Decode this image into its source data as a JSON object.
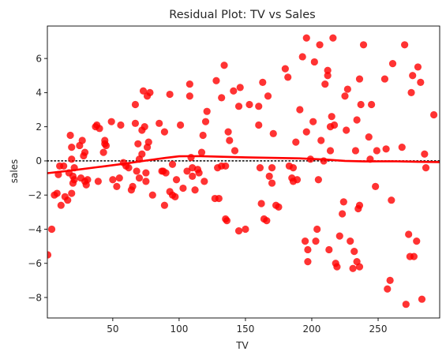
{
  "chart_data": {
    "type": "scatter",
    "title": "Residual Plot: TV vs Sales",
    "xlabel": "TV",
    "ylabel": "sales",
    "xlim": [
      0.7,
      296.4
    ],
    "ylim": [
      -9.2,
      7.9
    ],
    "xticks": [
      50,
      100,
      150,
      200,
      250
    ],
    "yticks": [
      -8,
      -6,
      -4,
      -2,
      0,
      2,
      4,
      6
    ],
    "grid": false,
    "point_color": "#ff0000",
    "line_color": "#ff0000",
    "reference_line": {
      "y": 0,
      "style": "dotted",
      "color": "#000000"
    },
    "points": [
      {
        "x": 1,
        "y": -5.5
      },
      {
        "x": 4,
        "y": -4.0
      },
      {
        "x": 6,
        "y": -2.0
      },
      {
        "x": 8,
        "y": -1.9
      },
      {
        "x": 9,
        "y": -0.8
      },
      {
        "x": 10,
        "y": -0.3
      },
      {
        "x": 11,
        "y": -2.6
      },
      {
        "x": 13,
        "y": -0.3
      },
      {
        "x": 14,
        "y": -2.1
      },
      {
        "x": 16,
        "y": -2.3
      },
      {
        "x": 17,
        "y": -0.7
      },
      {
        "x": 18,
        "y": 1.5
      },
      {
        "x": 19,
        "y": 0.8
      },
      {
        "x": 19,
        "y": 0.1
      },
      {
        "x": 19,
        "y": -1.9
      },
      {
        "x": 20,
        "y": -0.9
      },
      {
        "x": 20,
        "y": -1.3
      },
      {
        "x": 21,
        "y": -1.1
      },
      {
        "x": 21,
        "y": -0.4
      },
      {
        "x": 25,
        "y": 0.9
      },
      {
        "x": 26,
        "y": -1.0
      },
      {
        "x": 27,
        "y": 1.2
      },
      {
        "x": 28,
        "y": 0.3
      },
      {
        "x": 29,
        "y": 0.5
      },
      {
        "x": 29,
        "y": -1.2
      },
      {
        "x": 30,
        "y": -1.4
      },
      {
        "x": 31,
        "y": -1.1
      },
      {
        "x": 37,
        "y": 2.0
      },
      {
        "x": 38,
        "y": 2.1
      },
      {
        "x": 39,
        "y": -1.2
      },
      {
        "x": 40,
        "y": 1.9
      },
      {
        "x": 43,
        "y": 0.5
      },
      {
        "x": 44,
        "y": 1.2
      },
      {
        "x": 44,
        "y": 1.0
      },
      {
        "x": 45,
        "y": 0.9
      },
      {
        "x": 49,
        "y": 2.3
      },
      {
        "x": 50,
        "y": -1.1
      },
      {
        "x": 53,
        "y": -1.5
      },
      {
        "x": 55,
        "y": -1.0
      },
      {
        "x": 56,
        "y": 2.1
      },
      {
        "x": 58,
        "y": -0.1
      },
      {
        "x": 60,
        "y": -0.3
      },
      {
        "x": 62,
        "y": -0.4
      },
      {
        "x": 64,
        "y": -1.7
      },
      {
        "x": 65,
        "y": -1.5
      },
      {
        "x": 67,
        "y": 2.2
      },
      {
        "x": 67,
        "y": 3.3
      },
      {
        "x": 68,
        "y": -0.6
      },
      {
        "x": 69,
        "y": 1.0
      },
      {
        "x": 70,
        "y": -1.0
      },
      {
        "x": 70,
        "y": 0.1
      },
      {
        "x": 72,
        "y": 1.8
      },
      {
        "x": 72,
        "y": 0.4
      },
      {
        "x": 73,
        "y": 4.1
      },
      {
        "x": 74,
        "y": 2.0
      },
      {
        "x": 75,
        "y": -0.7
      },
      {
        "x": 75,
        "y": -1.2
      },
      {
        "x": 76,
        "y": 0.8
      },
      {
        "x": 76,
        "y": 3.8
      },
      {
        "x": 77,
        "y": 1.1
      },
      {
        "x": 78,
        "y": 4.0
      },
      {
        "x": 80,
        "y": -2.0
      },
      {
        "x": 85,
        "y": 2.2
      },
      {
        "x": 87,
        "y": -0.6
      },
      {
        "x": 88,
        "y": -0.6
      },
      {
        "x": 89,
        "y": 1.7
      },
      {
        "x": 89,
        "y": -2.6
      },
      {
        "x": 90,
        "y": -0.7
      },
      {
        "x": 93,
        "y": 3.9
      },
      {
        "x": 93,
        "y": -1.8
      },
      {
        "x": 95,
        "y": -0.2
      },
      {
        "x": 95,
        "y": -2.0
      },
      {
        "x": 97,
        "y": -2.1
      },
      {
        "x": 98,
        "y": -1.1
      },
      {
        "x": 101,
        "y": 2.1
      },
      {
        "x": 103,
        "y": -1.6
      },
      {
        "x": 106,
        "y": -0.6
      },
      {
        "x": 108,
        "y": 3.8
      },
      {
        "x": 108,
        "y": 4.5
      },
      {
        "x": 109,
        "y": 0.2
      },
      {
        "x": 110,
        "y": -0.9
      },
      {
        "x": 110,
        "y": -0.4
      },
      {
        "x": 112,
        "y": -1.7
      },
      {
        "x": 114,
        "y": -0.5
      },
      {
        "x": 115,
        "y": -0.7
      },
      {
        "x": 117,
        "y": 0.5
      },
      {
        "x": 118,
        "y": 1.5
      },
      {
        "x": 119,
        "y": -1.2
      },
      {
        "x": 120,
        "y": 2.3
      },
      {
        "x": 121,
        "y": 2.9
      },
      {
        "x": 127,
        "y": -2.2
      },
      {
        "x": 128,
        "y": 4.7
      },
      {
        "x": 129,
        "y": -0.4
      },
      {
        "x": 130,
        "y": -2.2
      },
      {
        "x": 132,
        "y": 3.7
      },
      {
        "x": 132,
        "y": -0.3
      },
      {
        "x": 134,
        "y": 5.6
      },
      {
        "x": 135,
        "y": -0.3
      },
      {
        "x": 135,
        "y": -3.4
      },
      {
        "x": 136,
        "y": -3.5
      },
      {
        "x": 137,
        "y": 1.7
      },
      {
        "x": 138,
        "y": 1.2
      },
      {
        "x": 141,
        "y": 4.1
      },
      {
        "x": 142,
        "y": 0.6
      },
      {
        "x": 145,
        "y": 3.2
      },
      {
        "x": 145,
        "y": -4.1
      },
      {
        "x": 146,
        "y": 4.3
      },
      {
        "x": 150,
        "y": -4.0
      },
      {
        "x": 153,
        "y": 3.3
      },
      {
        "x": 160,
        "y": 2.1
      },
      {
        "x": 160,
        "y": 3.2
      },
      {
        "x": 161,
        "y": -0.4
      },
      {
        "x": 162,
        "y": -2.5
      },
      {
        "x": 163,
        "y": 4.6
      },
      {
        "x": 164,
        "y": -3.4
      },
      {
        "x": 166,
        "y": -3.5
      },
      {
        "x": 167,
        "y": 3.8
      },
      {
        "x": 168,
        "y": -0.9
      },
      {
        "x": 170,
        "y": -0.4
      },
      {
        "x": 170,
        "y": -1.3
      },
      {
        "x": 171,
        "y": 1.6
      },
      {
        "x": 173,
        "y": -2.6
      },
      {
        "x": 175,
        "y": -2.7
      },
      {
        "x": 180,
        "y": 5.4
      },
      {
        "x": 182,
        "y": 4.9
      },
      {
        "x": 183,
        "y": -0.3
      },
      {
        "x": 185,
        "y": -1.0
      },
      {
        "x": 186,
        "y": -0.4
      },
      {
        "x": 186,
        "y": -1.2
      },
      {
        "x": 188,
        "y": 1.1
      },
      {
        "x": 189,
        "y": -1.1
      },
      {
        "x": 191,
        "y": 3.0
      },
      {
        "x": 193,
        "y": 6.1
      },
      {
        "x": 195,
        "y": -4.7
      },
      {
        "x": 196,
        "y": 7.2
      },
      {
        "x": 196,
        "y": 1.7
      },
      {
        "x": 197,
        "y": -5.9
      },
      {
        "x": 197,
        "y": -5.2
      },
      {
        "x": 199,
        "y": 0.1
      },
      {
        "x": 201,
        "y": 2.3
      },
      {
        "x": 202,
        "y": 5.8
      },
      {
        "x": 203,
        "y": -4.7
      },
      {
        "x": 204,
        "y": -4.0
      },
      {
        "x": 205,
        "y": -1.1
      },
      {
        "x": 206,
        "y": 6.8
      },
      {
        "x": 207,
        "y": 1.2
      },
      {
        "x": 209,
        "y": 0.0
      },
      {
        "x": 210,
        "y": 4.5
      },
      {
        "x": 212,
        "y": 5.3
      },
      {
        "x": 212,
        "y": 5.0
      },
      {
        "x": 213,
        "y": -5.2
      },
      {
        "x": 214,
        "y": 2.0
      },
      {
        "x": 214,
        "y": 0.6
      },
      {
        "x": 215,
        "y": 2.6
      },
      {
        "x": 216,
        "y": 7.2
      },
      {
        "x": 217,
        "y": 2.1
      },
      {
        "x": 218,
        "y": -6.0
      },
      {
        "x": 219,
        "y": -6.2
      },
      {
        "x": 221,
        "y": -4.4
      },
      {
        "x": 223,
        "y": -3.1
      },
      {
        "x": 224,
        "y": -2.4
      },
      {
        "x": 225,
        "y": 3.8
      },
      {
        "x": 226,
        "y": 1.8
      },
      {
        "x": 227,
        "y": 4.2
      },
      {
        "x": 229,
        "y": -4.7
      },
      {
        "x": 231,
        "y": -6.3
      },
      {
        "x": 232,
        "y": -5.3
      },
      {
        "x": 233,
        "y": 0.6
      },
      {
        "x": 234,
        "y": 2.4
      },
      {
        "x": 234,
        "y": -5.9
      },
      {
        "x": 235,
        "y": -2.8
      },
      {
        "x": 236,
        "y": -6.2
      },
      {
        "x": 236,
        "y": 4.8
      },
      {
        "x": 236,
        "y": -2.6
      },
      {
        "x": 237,
        "y": 3.3
      },
      {
        "x": 239,
        "y": 6.8
      },
      {
        "x": 243,
        "y": 1.4
      },
      {
        "x": 244,
        "y": 0.1
      },
      {
        "x": 245,
        "y": 3.3
      },
      {
        "x": 248,
        "y": -1.5
      },
      {
        "x": 249,
        "y": 0.6
      },
      {
        "x": 255,
        "y": 4.8
      },
      {
        "x": 256,
        "y": 0.7
      },
      {
        "x": 257,
        "y": -7.5
      },
      {
        "x": 259,
        "y": -7.0
      },
      {
        "x": 260,
        "y": -2.3
      },
      {
        "x": 261,
        "y": 5.7
      },
      {
        "x": 268,
        "y": 0.8
      },
      {
        "x": 270,
        "y": 6.8
      },
      {
        "x": 271,
        "y": -8.4
      },
      {
        "x": 273,
        "y": -4.3
      },
      {
        "x": 274,
        "y": -5.6
      },
      {
        "x": 275,
        "y": 4.0
      },
      {
        "x": 276,
        "y": 5.0
      },
      {
        "x": 277,
        "y": -5.6
      },
      {
        "x": 279,
        "y": -4.7
      },
      {
        "x": 280,
        "y": 5.5
      },
      {
        "x": 282,
        "y": 4.6
      },
      {
        "x": 283,
        "y": -8.1
      },
      {
        "x": 285,
        "y": 0.4
      },
      {
        "x": 286,
        "y": -0.4
      },
      {
        "x": 292,
        "y": 2.7
      }
    ],
    "lowess": {
      "x": [
        0.7,
        20,
        40,
        60,
        75,
        90,
        100,
        115,
        130,
        150,
        170,
        190,
        210,
        225,
        240,
        260,
        280,
        296.4
      ],
      "y": [
        -0.72,
        -0.55,
        -0.35,
        -0.15,
        0.02,
        0.18,
        0.27,
        0.28,
        0.25,
        0.21,
        0.18,
        0.15,
        0.08,
        0.0,
        -0.03,
        -0.02,
        -0.05,
        -0.07
      ]
    }
  }
}
